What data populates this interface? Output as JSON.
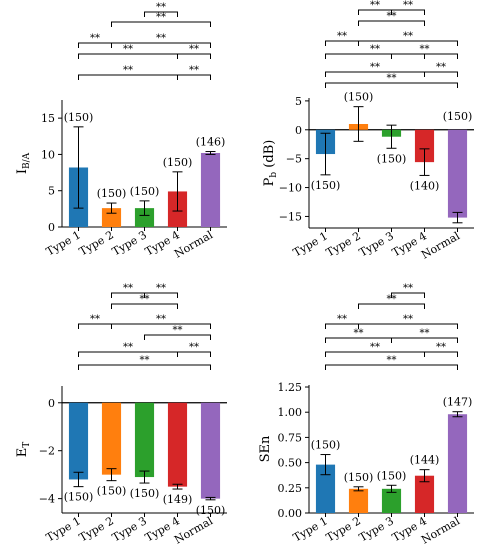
{
  "figure": {
    "background": "#ffffff"
  },
  "chart_data": [
    {
      "id": "ib",
      "type": "bar",
      "ylabel": "I",
      "ylabel_sub": "B/A",
      "categories": [
        "Type 1",
        "Type 2",
        "Type 3",
        "Type 4",
        "Normal"
      ],
      "values": [
        8.2,
        2.6,
        2.6,
        4.9,
        10.2
      ],
      "errors": [
        5.6,
        0.7,
        1.0,
        2.7,
        0.2
      ],
      "n_labels": [
        "(150)",
        "(150)",
        "(150)",
        "(150)",
        "(146)"
      ],
      "colors": [
        "#1f77b4",
        "#ff7f0e",
        "#2ca02c",
        "#d62728",
        "#9467bd"
      ],
      "ylim": [
        0,
        17.5
      ],
      "yticks": [
        0,
        5,
        10,
        15
      ],
      "ytick_labels": [
        "0",
        "5",
        "10",
        "15"
      ],
      "significance_label": "**",
      "significance": [
        {
          "from": 3,
          "to": 4,
          "text": "**"
        },
        {
          "from": 2,
          "to": 4,
          "text": "**"
        },
        {
          "from": 0,
          "to": 1,
          "text": "**"
        },
        {
          "from": 1,
          "to": 4,
          "text": "**"
        },
        {
          "from": 0,
          "to": 3,
          "text": "**"
        },
        {
          "from": 3,
          "to": 4,
          "text": "**"
        },
        {
          "from": 0,
          "to": 4,
          "text": "**"
        },
        {
          "from": 4,
          "to": 4,
          "text": "**"
        }
      ]
    },
    {
      "id": "pb",
      "type": "bar",
      "ylabel": "P",
      "ylabel_sub": "b",
      "ylabel_suffix": " (dB)",
      "categories": [
        "Type 1",
        "Type 2",
        "Type 3",
        "Type 4",
        "Normal"
      ],
      "values": [
        -4.2,
        1.0,
        -1.2,
        -5.6,
        -15.2
      ],
      "errors": [
        3.6,
        3.0,
        2.0,
        2.3,
        0.9
      ],
      "n_labels": [
        "(150)",
        "(150)",
        "(150)",
        "(140)",
        "(150)"
      ],
      "colors": [
        "#1f77b4",
        "#ff7f0e",
        "#2ca02c",
        "#d62728",
        "#9467bd"
      ],
      "ylim": [
        -17,
        5.5
      ],
      "yticks": [
        -15,
        -10,
        -5,
        0,
        5
      ],
      "ytick_labels": [
        "−15",
        "−10",
        "−5",
        "0",
        "5"
      ],
      "significance": [
        {
          "from": 1,
          "to": 2,
          "text": "**"
        },
        {
          "from": 2,
          "to": 3,
          "text": "**"
        },
        {
          "from": 1,
          "to": 3,
          "text": "**"
        },
        {
          "from": 0,
          "to": 1,
          "text": "**"
        },
        {
          "from": 1,
          "to": 4,
          "text": "**"
        },
        {
          "from": 0,
          "to": 3,
          "text": "**"
        },
        {
          "from": 2,
          "to": 4,
          "text": "**"
        },
        {
          "from": 0,
          "to": 4,
          "text": "**"
        },
        {
          "from": 3,
          "to": 4,
          "text": "**"
        },
        {
          "from": 0,
          "to": 4,
          "text": "**"
        }
      ]
    },
    {
      "id": "et",
      "type": "bar",
      "ylabel": "E",
      "ylabel_sub": "T",
      "categories": [
        "Type 1",
        "Type 2",
        "Type 3",
        "Type 4",
        "Normal"
      ],
      "values": [
        -3.2,
        -3.0,
        -3.1,
        -3.5,
        -4.0
      ],
      "errors": [
        0.3,
        0.25,
        0.25,
        0.1,
        0.05
      ],
      "n_labels": [
        "(150)",
        "(150)",
        "(150)",
        "(149)",
        "(150)"
      ],
      "colors": [
        "#1f77b4",
        "#ff7f0e",
        "#2ca02c",
        "#d62728",
        "#9467bd"
      ],
      "ylim": [
        -4.6,
        0.7
      ],
      "yticks": [
        -4,
        -2,
        0
      ],
      "ytick_labels": [
        "−4",
        "−2",
        "0"
      ],
      "significance": [
        {
          "from": 1,
          "to": 2,
          "text": "**"
        },
        {
          "from": 2,
          "to": 3,
          "text": "**"
        },
        {
          "from": 1,
          "to": 3,
          "text": "**"
        },
        {
          "from": 0,
          "to": 1,
          "text": "**"
        },
        {
          "from": 1,
          "to": 4,
          "text": "**"
        },
        {
          "from": 2,
          "to": 4,
          "text": "**"
        },
        {
          "from": 0,
          "to": 3,
          "text": "**"
        },
        {
          "from": 3,
          "to": 4,
          "text": "**"
        },
        {
          "from": 0,
          "to": 4,
          "text": "**"
        }
      ]
    },
    {
      "id": "sen",
      "type": "bar",
      "ylabel": "SEn",
      "categories": [
        "Type 1",
        "Type 2",
        "Type 3",
        "Type 4",
        "Normal"
      ],
      "values": [
        0.48,
        0.24,
        0.24,
        0.37,
        0.98
      ],
      "errors": [
        0.1,
        0.02,
        0.035,
        0.06,
        0.025
      ],
      "n_labels": [
        "(150)",
        "(150)",
        "(150)",
        "(144)",
        "(147)"
      ],
      "colors": [
        "#1f77b4",
        "#ff7f0e",
        "#2ca02c",
        "#d62728",
        "#9467bd"
      ],
      "ylim": [
        0,
        1.27
      ],
      "yticks": [
        0,
        0.25,
        0.5,
        0.75,
        1.0,
        1.25
      ],
      "ytick_labels": [
        "0.00",
        "0.25",
        "0.50",
        "0.75",
        "1.00",
        "1.25"
      ],
      "significance": [
        {
          "from": 2,
          "to": 3,
          "text": "**"
        },
        {
          "from": 1,
          "to": 3,
          "text": "**"
        },
        {
          "from": 0,
          "to": 1,
          "text": "**"
        },
        {
          "from": 1,
          "to": 4,
          "text": "**"
        },
        {
          "from": 0,
          "to": 2,
          "text": "**"
        },
        {
          "from": 2,
          "to": 4,
          "text": "**"
        },
        {
          "from": 0,
          "to": 3,
          "text": "**"
        },
        {
          "from": 3,
          "to": 4,
          "text": "**"
        },
        {
          "from": 0,
          "to": 4,
          "text": "**"
        }
      ]
    }
  ]
}
